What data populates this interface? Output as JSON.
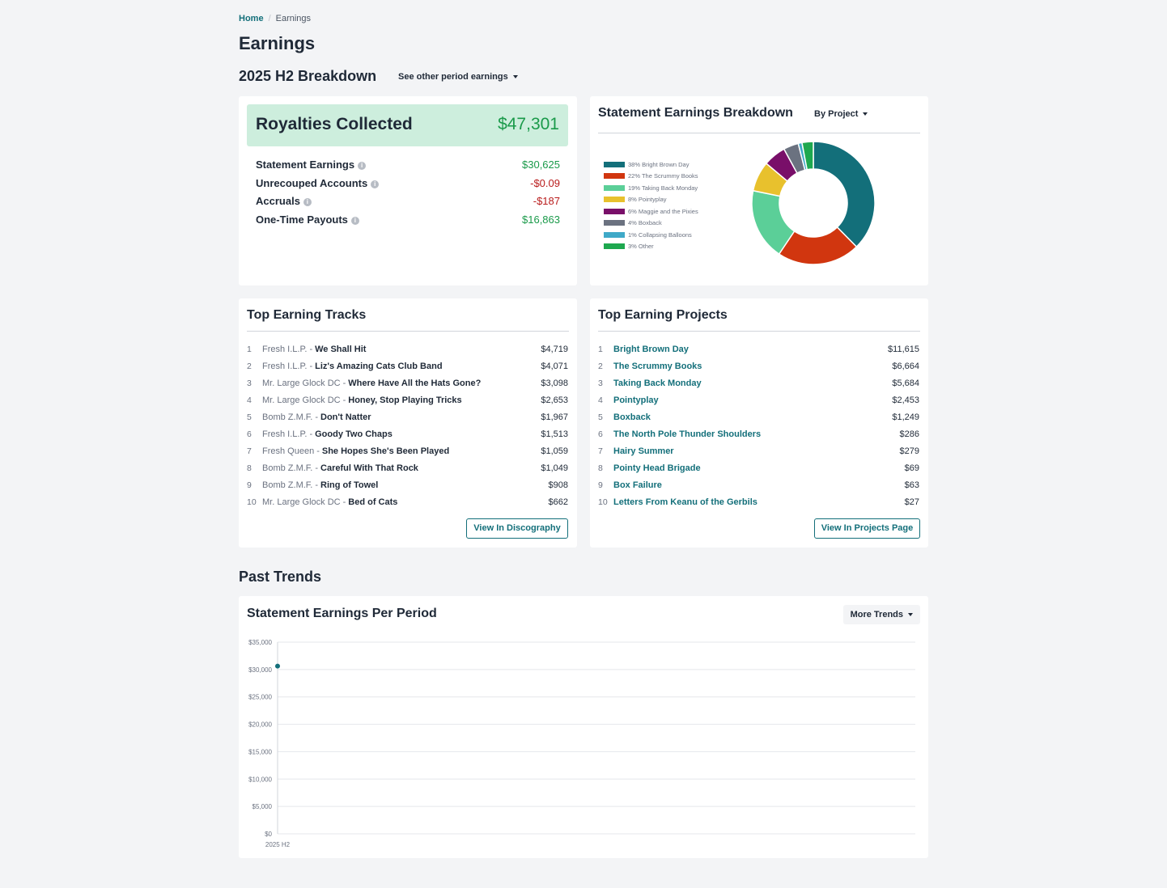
{
  "breadcrumb": {
    "home": "Home",
    "current": "Earnings"
  },
  "page_title": "Earnings",
  "period": {
    "title": "2025 H2 Breakdown",
    "dropdown_label": "See other period earnings"
  },
  "royalties": {
    "title": "Royalties Collected",
    "total": "$47,301",
    "rows": [
      {
        "label": "Statement Earnings",
        "value": "$30,625"
      },
      {
        "label": "Unrecouped Accounts",
        "value": "-$0.09"
      },
      {
        "label": "Accruals",
        "value": "-$187"
      },
      {
        "label": "One-Time Payouts",
        "value": "$16,863"
      }
    ]
  },
  "breakdown": {
    "title": "Statement Earnings Breakdown",
    "dropdown_label": "By Project",
    "legend": [
      {
        "label": "38% Bright Brown Day",
        "pct": 38,
        "color": "#136f7a"
      },
      {
        "label": "22% The Scrummy Books",
        "pct": 22,
        "color": "#d1360f"
      },
      {
        "label": "19% Taking Back Monday",
        "pct": 19,
        "color": "#5bcf98"
      },
      {
        "label": "8% Pointyplay",
        "pct": 8,
        "color": "#e8c12d"
      },
      {
        "label": "6% Maggie and the Pixies",
        "pct": 6,
        "color": "#790f69"
      },
      {
        "label": "4% Boxback",
        "pct": 4,
        "color": "#6b7280"
      },
      {
        "label": "1% Collapsing Balloons",
        "pct": 1,
        "color": "#3fa9c8"
      },
      {
        "label": "3% Other",
        "pct": 3,
        "color": "#1ea84f"
      }
    ]
  },
  "tracks": {
    "title": "Top Earning Tracks",
    "items": [
      {
        "num": "1",
        "artist": "Fresh I.L.P.",
        "track": "We Shall Hit",
        "amount": "$4,719"
      },
      {
        "num": "2",
        "artist": "Fresh I.L.P.",
        "track": "Liz's Amazing Cats Club Band",
        "amount": "$4,071"
      },
      {
        "num": "3",
        "artist": "Mr. Large Glock DC",
        "track": "Where Have All the Hats Gone?",
        "amount": "$3,098"
      },
      {
        "num": "4",
        "artist": "Mr. Large Glock DC",
        "track": "Honey, Stop Playing Tricks",
        "amount": "$2,653"
      },
      {
        "num": "5",
        "artist": "Bomb Z.M.F.",
        "track": "Don't Natter",
        "amount": "$1,967"
      },
      {
        "num": "6",
        "artist": "Fresh I.L.P.",
        "track": "Goody Two Chaps",
        "amount": "$1,513"
      },
      {
        "num": "7",
        "artist": "Fresh Queen",
        "track": "She Hopes She's Been Played",
        "amount": "$1,059"
      },
      {
        "num": "8",
        "artist": "Bomb Z.M.F.",
        "track": "Careful With That Rock",
        "amount": "$1,049"
      },
      {
        "num": "9",
        "artist": "Bomb Z.M.F.",
        "track": "Ring of Towel",
        "amount": "$908"
      },
      {
        "num": "10",
        "artist": "Mr. Large Glock DC",
        "track": "Bed of Cats",
        "amount": "$662"
      }
    ],
    "button": "View In Discography"
  },
  "projects": {
    "title": "Top Earning Projects",
    "items": [
      {
        "num": "1",
        "name": "Bright Brown Day",
        "amount": "$11,615"
      },
      {
        "num": "2",
        "name": "The Scrummy Books",
        "amount": "$6,664"
      },
      {
        "num": "3",
        "name": "Taking Back Monday",
        "amount": "$5,684"
      },
      {
        "num": "4",
        "name": "Pointyplay",
        "amount": "$2,453"
      },
      {
        "num": "5",
        "name": "Boxback",
        "amount": "$1,249"
      },
      {
        "num": "6",
        "name": "The North Pole Thunder Shoulders",
        "amount": "$286"
      },
      {
        "num": "7",
        "name": "Hairy Summer",
        "amount": "$279"
      },
      {
        "num": "8",
        "name": "Pointy Head Brigade",
        "amount": "$69"
      },
      {
        "num": "9",
        "name": "Box Failure",
        "amount": "$63"
      },
      {
        "num": "10",
        "name": "Letters From Keanu of the Gerbils",
        "amount": "$27"
      }
    ],
    "button": "View In Projects Page"
  },
  "trends": {
    "section_title": "Past Trends",
    "card_title": "Statement Earnings Per Period",
    "dropdown_label": "More Trends"
  },
  "chart_data": {
    "type": "line",
    "x": [
      "2025 H2"
    ],
    "series": [
      {
        "values": [
          30625
        ]
      }
    ],
    "ylim": [
      0,
      35000
    ],
    "yticks": [
      0,
      5000,
      10000,
      15000,
      20000,
      25000,
      30000,
      35000
    ],
    "ytick_labels": [
      "$0",
      "$5,000",
      "$10,000",
      "$15,000",
      "$20,000",
      "$25,000",
      "$30,000",
      "$35,000"
    ],
    "color": "#136f7a",
    "grid": true
  }
}
